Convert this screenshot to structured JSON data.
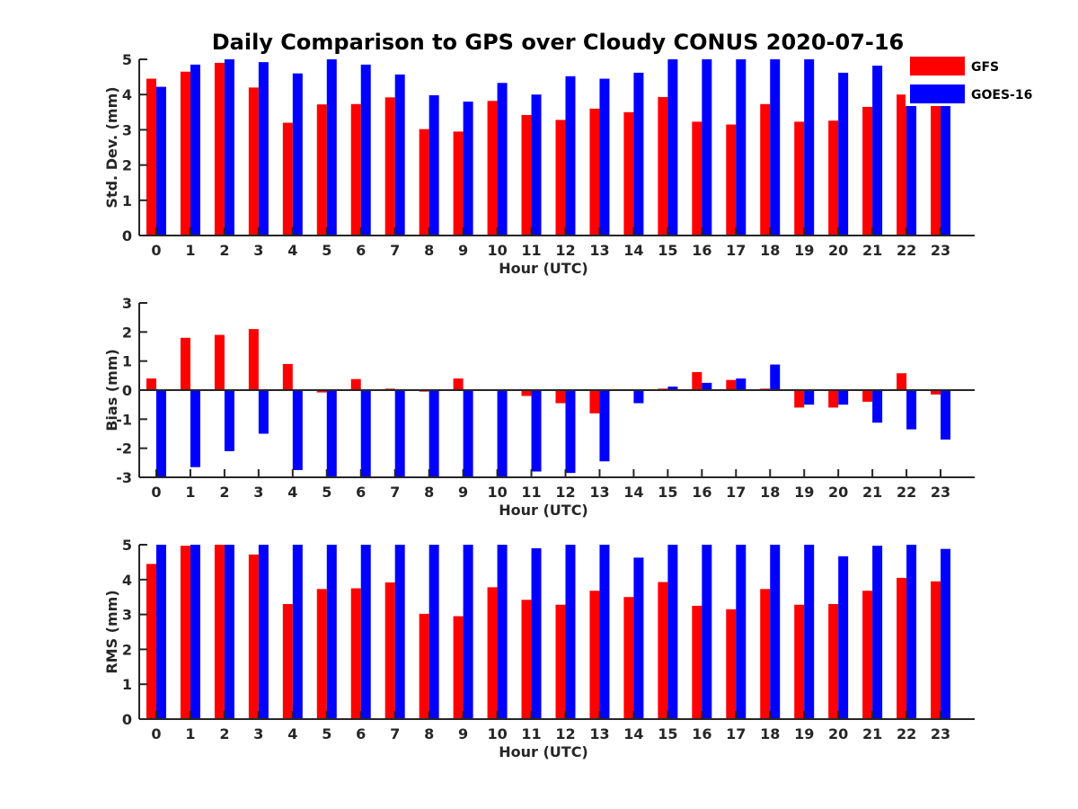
{
  "chart_data": {
    "title": "Daily Comparison to GPS over Cloudy CONUS 2020-07-16",
    "type": "bar",
    "legend": {
      "placement": "top-right",
      "entries": [
        {
          "name": "GFS",
          "color": "#ff0000"
        },
        {
          "name": "GOES-16",
          "color": "#0000ff"
        }
      ]
    },
    "panels": [
      {
        "type": "bar",
        "xlabel": "Hour (UTC)",
        "ylabel": "Std. Dev. (mm)",
        "ylim": [
          0,
          5
        ],
        "yticks": [
          0,
          1,
          2,
          3,
          4,
          5
        ],
        "categories": [
          "0",
          "1",
          "2",
          "3",
          "4",
          "5",
          "6",
          "7",
          "8",
          "9",
          "10",
          "11",
          "12",
          "13",
          "14",
          "15",
          "16",
          "17",
          "18",
          "19",
          "20",
          "21",
          "22",
          "23"
        ],
        "series": [
          {
            "name": "GFS",
            "color": "#ff0000",
            "values": [
              4.45,
              4.65,
              4.9,
              4.2,
              3.2,
              3.72,
              3.73,
              3.92,
              3.02,
              2.95,
              3.82,
              3.42,
              3.28,
              3.6,
              3.5,
              3.93,
              3.23,
              3.15,
              3.73,
              3.23,
              3.26,
              3.65,
              4.0,
              3.9
            ]
          },
          {
            "name": "GOES-16",
            "color": "#0000ff",
            "values": [
              4.22,
              4.85,
              5.0,
              4.92,
              4.6,
              5.0,
              4.85,
              4.57,
              3.98,
              3.8,
              4.33,
              4.0,
              4.52,
              4.45,
              4.62,
              5.0,
              5.0,
              5.0,
              5.0,
              5.0,
              4.62,
              4.82,
              5.0,
              4.7
            ]
          }
        ]
      },
      {
        "type": "bar",
        "xlabel": "Hour (UTC)",
        "ylabel": "Bias (mm)",
        "ylim": [
          -3,
          3
        ],
        "yticks": [
          -3,
          -2,
          -1,
          0,
          1,
          2,
          3
        ],
        "categories": [
          "0",
          "1",
          "2",
          "3",
          "4",
          "5",
          "6",
          "7",
          "8",
          "9",
          "10",
          "11",
          "12",
          "13",
          "14",
          "15",
          "16",
          "17",
          "18",
          "19",
          "20",
          "21",
          "22",
          "23"
        ],
        "series": [
          {
            "name": "GFS",
            "color": "#ff0000",
            "values": [
              0.4,
              1.8,
              1.9,
              2.1,
              0.9,
              -0.08,
              0.38,
              0.05,
              -0.05,
              0.4,
              -0.03,
              -0.2,
              -0.45,
              -0.8,
              0.02,
              0.05,
              0.62,
              0.35,
              0.05,
              -0.6,
              -0.6,
              -0.4,
              0.58,
              -0.15
            ]
          },
          {
            "name": "GOES-16",
            "color": "#0000ff",
            "values": [
              -3.0,
              -2.65,
              -2.1,
              -1.5,
              -2.75,
              -3.0,
              -3.0,
              -3.0,
              -3.0,
              -3.0,
              -3.0,
              -2.8,
              -2.85,
              -2.45,
              -0.45,
              0.12,
              0.25,
              0.4,
              0.88,
              -0.5,
              -0.5,
              -1.12,
              -1.35,
              -1.7
            ]
          }
        ]
      },
      {
        "type": "bar",
        "xlabel": "Hour (UTC)",
        "ylabel": "RMS (mm)",
        "ylim": [
          0,
          5
        ],
        "yticks": [
          0,
          1,
          2,
          3,
          4,
          5
        ],
        "categories": [
          "0",
          "1",
          "2",
          "3",
          "4",
          "5",
          "6",
          "7",
          "8",
          "9",
          "10",
          "11",
          "12",
          "13",
          "14",
          "15",
          "16",
          "17",
          "18",
          "19",
          "20",
          "21",
          "22",
          "23"
        ],
        "series": [
          {
            "name": "GFS",
            "color": "#ff0000",
            "values": [
              4.45,
              4.97,
              5.0,
              4.72,
              3.3,
              3.73,
              3.75,
              3.92,
              3.02,
              2.95,
              3.78,
              3.42,
              3.28,
              3.68,
              3.5,
              3.93,
              3.25,
              3.15,
              3.73,
              3.28,
              3.3,
              3.68,
              4.05,
              3.95
            ]
          },
          {
            "name": "GOES-16",
            "color": "#0000ff",
            "values": [
              5.0,
              5.0,
              5.0,
              5.0,
              5.0,
              5.0,
              5.0,
              5.0,
              5.0,
              5.0,
              5.0,
              4.9,
              5.0,
              5.0,
              4.63,
              5.0,
              5.0,
              5.0,
              5.0,
              5.0,
              4.67,
              4.97,
              5.0,
              4.88
            ]
          }
        ]
      }
    ]
  }
}
